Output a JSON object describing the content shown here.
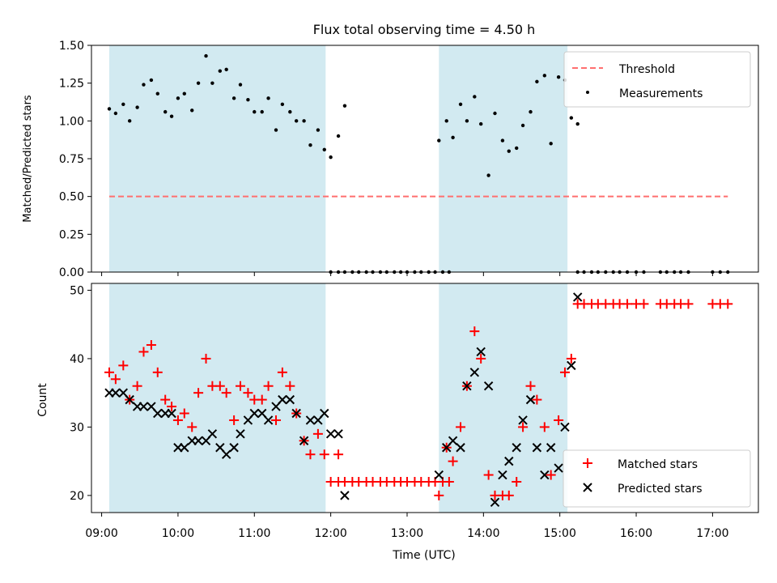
{
  "chart_data": [
    {
      "type": "scatter",
      "title": "Flux total observing time = 4.50 h",
      "ylabel": "Matched/Predicted stars",
      "xlabel": "",
      "xlim": [
        "08:52",
        "17:36"
      ],
      "ylim": [
        0,
        1.5
      ],
      "yticks": [
        0.0,
        0.25,
        0.5,
        0.75,
        1.0,
        1.25,
        1.5
      ],
      "ytick_labels": [
        "0.00",
        "0.25",
        "0.50",
        "0.75",
        "1.00",
        "1.25",
        "1.50"
      ],
      "grid": false,
      "legend_position": "top-right",
      "shaded_regions": [
        {
          "start": "09:06",
          "end": "11:56",
          "color": "#add8e6"
        },
        {
          "start": "13:25",
          "end": "15:06",
          "color": "#add8e6"
        }
      ],
      "series": [
        {
          "name": "Threshold",
          "kind": "dashed-line",
          "color": "#ff6f6f",
          "x": [
            "09:06",
            "17:12"
          ],
          "y": [
            0.5,
            0.5
          ]
        },
        {
          "name": "Measurements",
          "kind": "scatter",
          "color": "#000000",
          "points": [
            [
              "09:06",
              1.08
            ],
            [
              "09:11",
              1.05
            ],
            [
              "09:17",
              1.11
            ],
            [
              "09:22",
              1.0
            ],
            [
              "09:28",
              1.09
            ],
            [
              "09:33",
              1.24
            ],
            [
              "09:39",
              1.27
            ],
            [
              "09:44",
              1.18
            ],
            [
              "09:50",
              1.06
            ],
            [
              "09:55",
              1.03
            ],
            [
              "10:00",
              1.15
            ],
            [
              "10:05",
              1.18
            ],
            [
              "10:11",
              1.07
            ],
            [
              "10:16",
              1.25
            ],
            [
              "10:22",
              1.43
            ],
            [
              "10:27",
              1.25
            ],
            [
              "10:33",
              1.33
            ],
            [
              "10:38",
              1.34
            ],
            [
              "10:44",
              1.15
            ],
            [
              "10:49",
              1.24
            ],
            [
              "10:55",
              1.14
            ],
            [
              "11:00",
              1.06
            ],
            [
              "11:06",
              1.06
            ],
            [
              "11:11",
              1.15
            ],
            [
              "11:17",
              0.94
            ],
            [
              "11:22",
              1.11
            ],
            [
              "11:28",
              1.06
            ],
            [
              "11:33",
              1.0
            ],
            [
              "11:39",
              1.0
            ],
            [
              "11:44",
              0.84
            ],
            [
              "11:50",
              0.94
            ],
            [
              "11:55",
              0.81
            ],
            [
              "12:00",
              0.76
            ],
            [
              "12:06",
              0.9
            ],
            [
              "12:11",
              1.1
            ],
            [
              "12:00",
              0
            ],
            [
              "12:06",
              0
            ],
            [
              "12:11",
              0
            ],
            [
              "12:17",
              0
            ],
            [
              "12:22",
              0
            ],
            [
              "12:28",
              0
            ],
            [
              "12:33",
              0
            ],
            [
              "12:39",
              0
            ],
            [
              "12:44",
              0
            ],
            [
              "12:50",
              0
            ],
            [
              "12:55",
              0
            ],
            [
              "13:00",
              0
            ],
            [
              "13:06",
              0
            ],
            [
              "13:11",
              0
            ],
            [
              "13:17",
              0
            ],
            [
              "13:22",
              0
            ],
            [
              "13:28",
              0
            ],
            [
              "13:33",
              0
            ],
            [
              "13:25",
              0.87
            ],
            [
              "13:31",
              1.0
            ],
            [
              "13:36",
              0.89
            ],
            [
              "13:42",
              1.11
            ],
            [
              "13:47",
              1.0
            ],
            [
              "13:53",
              1.16
            ],
            [
              "13:58",
              0.98
            ],
            [
              "14:04",
              0.64
            ],
            [
              "14:09",
              1.05
            ],
            [
              "14:15",
              0.87
            ],
            [
              "14:20",
              0.8
            ],
            [
              "14:26",
              0.82
            ],
            [
              "14:31",
              0.97
            ],
            [
              "14:37",
              1.06
            ],
            [
              "14:42",
              1.26
            ],
            [
              "14:48",
              1.3
            ],
            [
              "14:53",
              0.85
            ],
            [
              "14:59",
              1.29
            ],
            [
              "15:04",
              1.27
            ],
            [
              "15:09",
              1.02
            ],
            [
              "15:14",
              0.98
            ],
            [
              "15:14",
              0
            ],
            [
              "15:19",
              0
            ],
            [
              "15:25",
              0
            ],
            [
              "15:30",
              0
            ],
            [
              "15:36",
              0
            ],
            [
              "15:42",
              0
            ],
            [
              "15:47",
              0
            ],
            [
              "15:53",
              0
            ],
            [
              "16:00",
              0
            ],
            [
              "16:06",
              0
            ],
            [
              "16:19",
              0
            ],
            [
              "16:24",
              0
            ],
            [
              "16:30",
              0
            ],
            [
              "16:35",
              0
            ],
            [
              "16:41",
              0
            ],
            [
              "17:00",
              0
            ],
            [
              "17:06",
              0
            ],
            [
              "17:12",
              0
            ]
          ]
        }
      ],
      "legend": [
        "Threshold",
        "Measurements"
      ]
    },
    {
      "type": "scatter",
      "title": "",
      "ylabel": "Count",
      "xlabel": "Time (UTC)",
      "xlim": [
        "08:52",
        "17:36"
      ],
      "ylim": [
        17.5,
        51
      ],
      "yticks": [
        20,
        30,
        40,
        50
      ],
      "ytick_labels": [
        "20",
        "30",
        "40",
        "50"
      ],
      "xticks": [
        "09:00",
        "10:00",
        "11:00",
        "12:00",
        "13:00",
        "14:00",
        "15:00",
        "16:00",
        "17:00"
      ],
      "grid": false,
      "legend_position": "bottom-right",
      "shaded_regions": [
        {
          "start": "09:06",
          "end": "11:56",
          "color": "#add8e6"
        },
        {
          "start": "13:25",
          "end": "15:06",
          "color": "#add8e6"
        }
      ],
      "series": [
        {
          "name": "Matched stars",
          "marker": "+",
          "color": "#ff0000",
          "points": [
            [
              "09:06",
              38
            ],
            [
              "09:11",
              37
            ],
            [
              "09:17",
              39
            ],
            [
              "09:22",
              34
            ],
            [
              "09:28",
              36
            ],
            [
              "09:33",
              41
            ],
            [
              "09:39",
              42
            ],
            [
              "09:44",
              38
            ],
            [
              "09:50",
              34
            ],
            [
              "09:55",
              33
            ],
            [
              "10:00",
              31
            ],
            [
              "10:05",
              32
            ],
            [
              "10:11",
              30
            ],
            [
              "10:16",
              35
            ],
            [
              "10:22",
              40
            ],
            [
              "10:27",
              36
            ],
            [
              "10:33",
              36
            ],
            [
              "10:38",
              35
            ],
            [
              "10:44",
              31
            ],
            [
              "10:49",
              36
            ],
            [
              "10:55",
              35
            ],
            [
              "11:00",
              34
            ],
            [
              "11:06",
              34
            ],
            [
              "11:11",
              36
            ],
            [
              "11:17",
              31
            ],
            [
              "11:22",
              38
            ],
            [
              "11:28",
              36
            ],
            [
              "11:33",
              32
            ],
            [
              "11:39",
              28
            ],
            [
              "11:44",
              26
            ],
            [
              "11:50",
              29
            ],
            [
              "11:55",
              26
            ],
            [
              "12:00",
              22
            ],
            [
              "12:06",
              26
            ],
            [
              "12:06",
              22
            ],
            [
              "12:11",
              22
            ],
            [
              "12:17",
              22
            ],
            [
              "12:22",
              22
            ],
            [
              "12:28",
              22
            ],
            [
              "12:33",
              22
            ],
            [
              "12:39",
              22
            ],
            [
              "12:44",
              22
            ],
            [
              "12:50",
              22
            ],
            [
              "12:55",
              22
            ],
            [
              "13:00",
              22
            ],
            [
              "13:06",
              22
            ],
            [
              "13:11",
              22
            ],
            [
              "13:17",
              22
            ],
            [
              "13:22",
              22
            ],
            [
              "13:28",
              22
            ],
            [
              "13:33",
              22
            ],
            [
              "13:25",
              20
            ],
            [
              "13:31",
              27
            ],
            [
              "13:36",
              25
            ],
            [
              "13:42",
              30
            ],
            [
              "13:47",
              36
            ],
            [
              "13:53",
              44
            ],
            [
              "13:58",
              40
            ],
            [
              "14:04",
              23
            ],
            [
              "14:09",
              20
            ],
            [
              "14:15",
              20
            ],
            [
              "14:20",
              20
            ],
            [
              "14:26",
              22
            ],
            [
              "14:31",
              30
            ],
            [
              "14:37",
              36
            ],
            [
              "14:42",
              34
            ],
            [
              "14:48",
              30
            ],
            [
              "14:53",
              23
            ],
            [
              "14:59",
              31
            ],
            [
              "15:04",
              38
            ],
            [
              "15:09",
              40
            ],
            [
              "15:14",
              48
            ],
            [
              "15:19",
              48
            ],
            [
              "15:25",
              48
            ],
            [
              "15:30",
              48
            ],
            [
              "15:36",
              48
            ],
            [
              "15:42",
              48
            ],
            [
              "15:47",
              48
            ],
            [
              "15:53",
              48
            ],
            [
              "16:00",
              48
            ],
            [
              "16:06",
              48
            ],
            [
              "16:19",
              48
            ],
            [
              "16:24",
              48
            ],
            [
              "16:30",
              48
            ],
            [
              "16:35",
              48
            ],
            [
              "16:41",
              48
            ],
            [
              "17:00",
              48
            ],
            [
              "17:06",
              48
            ],
            [
              "17:12",
              48
            ]
          ]
        },
        {
          "name": "Predicted stars",
          "marker": "x",
          "color": "#000000",
          "points": [
            [
              "09:06",
              35
            ],
            [
              "09:11",
              35
            ],
            [
              "09:17",
              35
            ],
            [
              "09:22",
              34
            ],
            [
              "09:28",
              33
            ],
            [
              "09:33",
              33
            ],
            [
              "09:39",
              33
            ],
            [
              "09:44",
              32
            ],
            [
              "09:50",
              32
            ],
            [
              "09:55",
              32
            ],
            [
              "10:00",
              27
            ],
            [
              "10:05",
              27
            ],
            [
              "10:11",
              28
            ],
            [
              "10:16",
              28
            ],
            [
              "10:22",
              28
            ],
            [
              "10:27",
              29
            ],
            [
              "10:33",
              27
            ],
            [
              "10:38",
              26
            ],
            [
              "10:44",
              27
            ],
            [
              "10:49",
              29
            ],
            [
              "10:55",
              31
            ],
            [
              "11:00",
              32
            ],
            [
              "11:06",
              32
            ],
            [
              "11:11",
              31
            ],
            [
              "11:17",
              33
            ],
            [
              "11:22",
              34
            ],
            [
              "11:28",
              34
            ],
            [
              "11:33",
              32
            ],
            [
              "11:39",
              28
            ],
            [
              "11:44",
              31
            ],
            [
              "11:50",
              31
            ],
            [
              "11:55",
              32
            ],
            [
              "12:00",
              29
            ],
            [
              "12:06",
              29
            ],
            [
              "12:11",
              20
            ],
            [
              "13:25",
              23
            ],
            [
              "13:31",
              27
            ],
            [
              "13:36",
              28
            ],
            [
              "13:42",
              27
            ],
            [
              "13:47",
              36
            ],
            [
              "13:53",
              38
            ],
            [
              "13:58",
              41
            ],
            [
              "14:04",
              36
            ],
            [
              "14:09",
              19
            ],
            [
              "14:15",
              23
            ],
            [
              "14:20",
              25
            ],
            [
              "14:26",
              27
            ],
            [
              "14:31",
              31
            ],
            [
              "14:37",
              34
            ],
            [
              "14:42",
              27
            ],
            [
              "14:48",
              23
            ],
            [
              "14:53",
              27
            ],
            [
              "14:59",
              24
            ],
            [
              "15:04",
              30
            ],
            [
              "15:09",
              39
            ],
            [
              "15:14",
              49
            ]
          ]
        }
      ],
      "legend": [
        "Matched stars",
        "Predicted stars"
      ]
    }
  ]
}
